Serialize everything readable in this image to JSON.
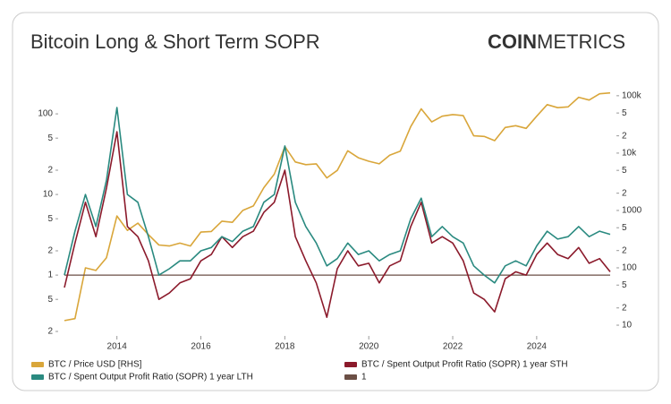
{
  "chart_data": {
    "type": "line",
    "title": "Bitcoin Long & Short Term SOPR",
    "brand_bold": "COIN",
    "brand_light": "METRICS",
    "x": [
      2012.75,
      2013.0,
      2013.25,
      2013.5,
      2013.75,
      2014.0,
      2014.25,
      2014.5,
      2014.75,
      2015.0,
      2015.25,
      2015.5,
      2015.75,
      2016.0,
      2016.25,
      2016.5,
      2016.75,
      2017.0,
      2017.25,
      2017.5,
      2017.75,
      2018.0,
      2018.25,
      2018.5,
      2018.75,
      2019.0,
      2019.25,
      2019.5,
      2019.75,
      2020.0,
      2020.25,
      2020.5,
      2020.75,
      2021.0,
      2021.25,
      2021.5,
      2021.75,
      2022.0,
      2022.25,
      2022.5,
      2022.75,
      2023.0,
      2023.25,
      2023.5,
      2023.75,
      2024.0,
      2024.25,
      2024.5,
      2024.75,
      2025.0,
      2025.25,
      2025.5,
      2025.75
    ],
    "series": [
      {
        "name": "BTC / Price USD [RHS]",
        "color": "#d9a63a",
        "axis": "y2",
        "values": [
          12,
          13,
          100,
          90,
          150,
          800,
          450,
          600,
          380,
          250,
          240,
          270,
          240,
          420,
          430,
          650,
          620,
          1000,
          1200,
          2500,
          4300,
          13000,
          7000,
          6300,
          6500,
          3700,
          5000,
          11000,
          8300,
          7200,
          6500,
          9200,
          10800,
          29000,
          59000,
          35000,
          44000,
          47000,
          45000,
          20000,
          19500,
          16500,
          28000,
          30000,
          27000,
          44000,
          70000,
          62000,
          64000,
          94000,
          84000,
          108000,
          112000
        ]
      },
      {
        "name": "BTC / Spent Output Profit Ratio (SOPR) 1 year STH",
        "color": "#8b1a2b",
        "values": [
          0.7,
          2.5,
          8,
          3,
          12,
          60,
          4,
          3,
          1.5,
          0.5,
          0.6,
          0.8,
          0.9,
          1.5,
          1.8,
          3,
          2.2,
          3,
          3.5,
          6,
          8,
          20,
          3,
          1.5,
          0.8,
          0.3,
          1.2,
          2.0,
          1.3,
          1.4,
          0.8,
          1.3,
          1.5,
          4,
          8,
          2.5,
          3,
          2.5,
          1.5,
          0.6,
          0.5,
          0.35,
          0.9,
          1.1,
          1.0,
          1.8,
          2.5,
          1.8,
          1.6,
          2.2,
          1.4,
          1.6,
          1.1
        ]
      },
      {
        "name": "BTC / Spent Output Profit Ratio (SOPR) 1 year LTH",
        "color": "#2a8a80",
        "values": [
          1.0,
          3.5,
          10,
          4,
          15,
          120,
          10,
          8,
          3,
          1.0,
          1.2,
          1.5,
          1.5,
          2,
          2.2,
          3,
          2.6,
          3.5,
          4,
          8,
          10,
          40,
          8,
          4,
          2.5,
          1.3,
          1.6,
          2.5,
          1.8,
          2.0,
          1.5,
          1.8,
          2.0,
          5,
          9,
          3,
          4,
          3,
          2.5,
          1.3,
          1.0,
          0.8,
          1.3,
          1.5,
          1.3,
          2.3,
          3.5,
          2.8,
          3,
          4,
          3,
          3.5,
          3.2
        ]
      },
      {
        "name": "1",
        "color": "#6b4f45",
        "values": [
          1,
          1,
          1,
          1,
          1,
          1,
          1,
          1,
          1,
          1,
          1,
          1,
          1,
          1,
          1,
          1,
          1,
          1,
          1,
          1,
          1,
          1,
          1,
          1,
          1,
          1,
          1,
          1,
          1,
          1,
          1,
          1,
          1,
          1,
          1,
          1,
          1,
          1,
          1,
          1,
          1,
          1,
          1,
          1,
          1,
          1,
          1,
          1,
          1,
          1,
          1,
          1,
          1
        ]
      }
    ],
    "xlim": [
      2012.6,
      2025.9
    ],
    "xticks": [
      2014,
      2016,
      2018,
      2020,
      2022,
      2024
    ],
    "ylim": [
      0.176,
      200
    ],
    "log_y": true,
    "yticks": [
      100,
      {
        "value": 50,
        "label": "5"
      },
      {
        "value": 20,
        "label": "2"
      },
      10,
      5,
      2,
      1,
      {
        "value": 0.5,
        "label": "5"
      },
      {
        "value": 0.2,
        "label": "2"
      }
    ],
    "y2lim": [
      6.5,
      128000
    ],
    "log_y2": true,
    "y2ticks": [
      {
        "value": 100000,
        "label": "100k"
      },
      {
        "value": 50000,
        "label": "5"
      },
      {
        "value": 20000,
        "label": "2"
      },
      {
        "value": 10000,
        "label": "10k"
      },
      {
        "value": 5000,
        "label": "5"
      },
      {
        "value": 2000,
        "label": "2"
      },
      1000,
      {
        "value": 500,
        "label": "5"
      },
      {
        "value": 200,
        "label": "2"
      },
      100,
      {
        "value": 50,
        "label": "5"
      },
      {
        "value": 20,
        "label": "2"
      },
      10
    ],
    "grid": false,
    "legend": "bottom"
  }
}
